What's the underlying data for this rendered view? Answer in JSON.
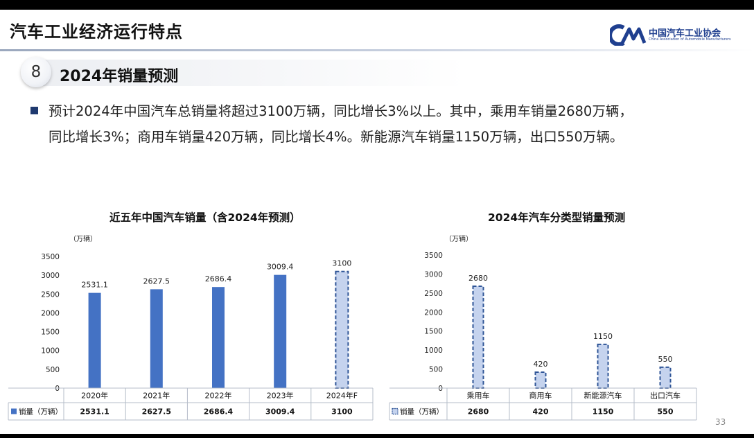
{
  "page": {
    "title": "汽车工业经济运行特点",
    "logo_cn": "中国汽车工业协会",
    "logo_en": "China Association of Automobile Manufacturers",
    "section_number": "8",
    "section_title": "2024年销量预测",
    "bullet_line1": "预计2024年中国汽车总销量将超过3100万辆，同比增长3%以上。其中，乘用车销量2680万辆，",
    "bullet_line2": "同比增长3%；商用车销量420万辆，同比增长4%。新能源汽车销量1150万辆，出口550万辆。",
    "page_number": "33"
  },
  "colors": {
    "bar": "#4472c4",
    "forecast_fill": "#c5d3ee",
    "forecast_stroke": "#2f5597",
    "rule": "#b4bcc8"
  },
  "chart_data": [
    {
      "type": "bar",
      "title": "近五年中国汽车销量（含2024年预测）",
      "unit": "（万辆）",
      "categories": [
        "2020年",
        "2021年",
        "2022年",
        "2023年",
        "2024年F"
      ],
      "series": [
        {
          "name": "销量（万辆）",
          "values": [
            2531.1,
            2627.5,
            2686.4,
            3009.4,
            3100
          ]
        }
      ],
      "data_labels": [
        "2531.1",
        "2627.5",
        "2686.4",
        "3009.4",
        "3100"
      ],
      "table_values": [
        "2531.1",
        "2627.5",
        "2686.4",
        "3009.4",
        "3100"
      ],
      "forecast_flags": [
        false,
        false,
        false,
        false,
        true
      ],
      "ylim": [
        0,
        3500
      ],
      "yticks": [
        0,
        500,
        1000,
        1500,
        2000,
        2500,
        3000,
        3500
      ],
      "ytick_labels": [
        "0",
        "500",
        "1000",
        "1500",
        "2000",
        "2500",
        "3000",
        "3500"
      ],
      "data_table": true,
      "legend": "data-table"
    },
    {
      "type": "bar",
      "title": "2024年汽车分类型销量预测",
      "unit": "（万辆）",
      "categories": [
        "乘用车",
        "商用车",
        "新能源汽车",
        "出口汽车"
      ],
      "series": [
        {
          "name": "销量（万辆）",
          "values": [
            2680,
            420,
            1150,
            550
          ]
        }
      ],
      "data_labels": [
        "2680",
        "420",
        "1150",
        "550"
      ],
      "table_values": [
        "2680",
        "420",
        "1150",
        "550"
      ],
      "forecast_flags": [
        true,
        true,
        true,
        true
      ],
      "ylim": [
        0,
        3500
      ],
      "yticks": [
        0,
        500,
        1000,
        1500,
        2000,
        2500,
        3000,
        3500
      ],
      "ytick_labels": [
        "0",
        "500",
        "1000",
        "1500",
        "2000",
        "2500",
        "3000",
        "3500"
      ],
      "data_table": true,
      "legend": "data-table"
    }
  ]
}
